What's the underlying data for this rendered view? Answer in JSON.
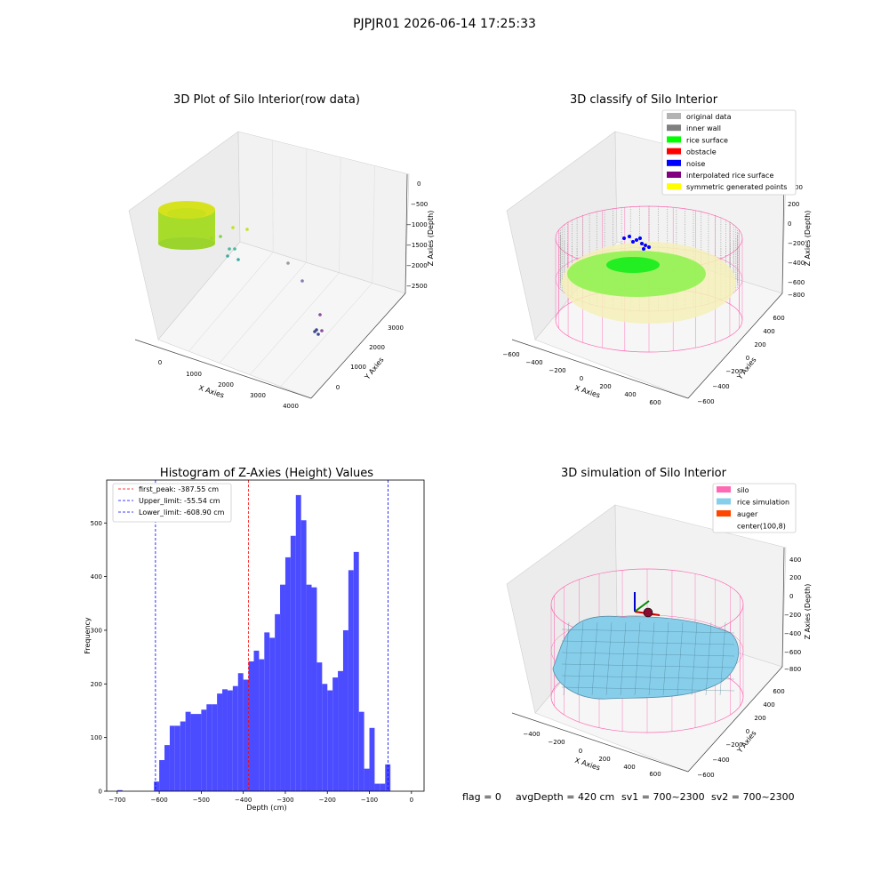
{
  "suptitle": "PJPJR01 2026-06-14 17:25:33",
  "colors": {
    "histogram_bar": "#4b4bff",
    "first_peak_line": "#ff0000",
    "limit_lines": "#0000ff",
    "silo": "#ff69b4",
    "rice_simulation": "#87ceeb",
    "auger": "#ff4500",
    "original_data": "#b3b3b3",
    "inner_wall": "#808080",
    "rice_surface": "#00ff00",
    "obstacle": "#ff0000",
    "noise": "#0000ff",
    "interpolated_rice_surface": "#800080",
    "symmetric_generated_points": "#ffff00"
  },
  "plot1": {
    "title": "3D Plot of Silo Interior(row data)",
    "xlabel": "X Axies",
    "ylabel": "Y Axies",
    "zlabel": "Z Axies (Depth)",
    "xticks": [
      "0",
      "1000",
      "2000",
      "3000",
      "4000"
    ],
    "yticks": [
      "0",
      "1000",
      "2000",
      "3000"
    ],
    "zticks": [
      "0",
      "−500",
      "−1000",
      "−1500",
      "−2000",
      "−2500"
    ]
  },
  "plot2": {
    "title": "3D classify of Silo Interior",
    "xlabel": "X Axies",
    "ylabel": "Y Axies",
    "zlabel": "Z Axies (Depth)",
    "xticks": [
      "−600",
      "−400",
      "−200",
      "0",
      "200",
      "400",
      "600"
    ],
    "yticks": [
      "−600",
      "−400",
      "−200",
      "0",
      "200",
      "400",
      "600"
    ],
    "zticks": [
      "200",
      "0",
      "−200",
      "−400",
      "−600",
      "−800"
    ],
    "legend": [
      {
        "label": "original data",
        "color": "#b3b3b3"
      },
      {
        "label": "inner wall",
        "color": "#808080"
      },
      {
        "label": "rice surface",
        "color": "#00ff00"
      },
      {
        "label": "obstacle",
        "color": "#ff0000"
      },
      {
        "label": "noise",
        "color": "#0000ff"
      },
      {
        "label": "interpolated rice surface",
        "color": "#800080"
      },
      {
        "label": "symmetric generated points",
        "color": "#ffff00"
      }
    ],
    "zticks_partial": "00"
  },
  "plot4": {
    "title": "3D simulation of Silo Interior",
    "xlabel": "X Axies",
    "ylabel": "Y Axies",
    "zlabel": "Z Axies (Depth)",
    "xticks": [
      "−400",
      "−200",
      "0",
      "200",
      "400",
      "600"
    ],
    "yticks": [
      "−600",
      "−400",
      "−200",
      "0",
      "200",
      "400",
      "600"
    ],
    "zticks": [
      "400",
      "200",
      "0",
      "−200",
      "−400",
      "−600",
      "−800"
    ],
    "legend": [
      {
        "label": "silo",
        "color": "#ff69b4"
      },
      {
        "label": "rice simulation",
        "color": "#87ceeb"
      },
      {
        "label": "auger",
        "color": "#ff4500"
      },
      {
        "label": "center(100,8)",
        "color": ""
      }
    ]
  },
  "footer": {
    "flag": "flag = 0",
    "avg_depth": "avgDepth = 420 cm",
    "sv1": "sv1 = 700~2300",
    "sv2": "sv2 = 700~2300"
  },
  "chart_data": [
    {
      "type": "histogram",
      "title": "Histogram of Z-Axies (Height) Values",
      "xlabel": "Depth (cm)",
      "ylabel": "Frequency",
      "xlim": [
        -725,
        30
      ],
      "ylim": [
        0,
        580
      ],
      "xticks": [
        -700,
        -600,
        -500,
        -400,
        -300,
        -200,
        -100,
        0
      ],
      "xtick_labels": [
        "−700",
        "−600",
        "−500",
        "−400",
        "−300",
        "−200",
        "−100",
        "0"
      ],
      "yticks": [
        0,
        100,
        200,
        300,
        400,
        500
      ],
      "bin_width": 12.5,
      "bins_start": [
        -700,
        -612.5,
        -600,
        -587.5,
        -575,
        -562.5,
        -550,
        -537.5,
        -525,
        -512.5,
        -500,
        -487.5,
        -475,
        -462.5,
        -450,
        -437.5,
        -425,
        -412.5,
        -400,
        -387.5,
        -375,
        -362.5,
        -350,
        -337.5,
        -325,
        -312.5,
        -300,
        -287.5,
        -275,
        -262.5,
        -250,
        -237.5,
        -225,
        -212.5,
        -200,
        -187.5,
        -175,
        -162.5,
        -150,
        -137.5,
        -125,
        -112.5,
        -100,
        -87.5,
        -75,
        -62.5,
        -50,
        -37.5,
        -25,
        -12.5
      ],
      "counts": [
        2,
        18,
        58,
        86,
        122,
        122,
        130,
        148,
        144,
        144,
        152,
        162,
        162,
        182,
        190,
        188,
        196,
        220,
        208,
        242,
        262,
        246,
        296,
        286,
        330,
        385,
        436,
        476,
        552,
        505,
        385,
        380,
        240,
        200,
        188,
        212,
        224,
        300,
        412,
        446,
        148,
        42,
        118,
        14,
        14,
        50,
        0,
        0,
        0,
        0
      ],
      "vlines": [
        {
          "name": "first_peak",
          "label": "first_peak: -387.55 cm",
          "x": -387.55,
          "color": "#ff0000"
        },
        {
          "name": "upper_limit",
          "label": "Upper_limit: -55.54 cm",
          "x": -55.54,
          "color": "#0000ff"
        },
        {
          "name": "lower_limit",
          "label": "Lower_limit: -608.90 cm",
          "x": -608.9,
          "color": "#0000ff"
        }
      ],
      "legend_position": "top-left"
    }
  ]
}
